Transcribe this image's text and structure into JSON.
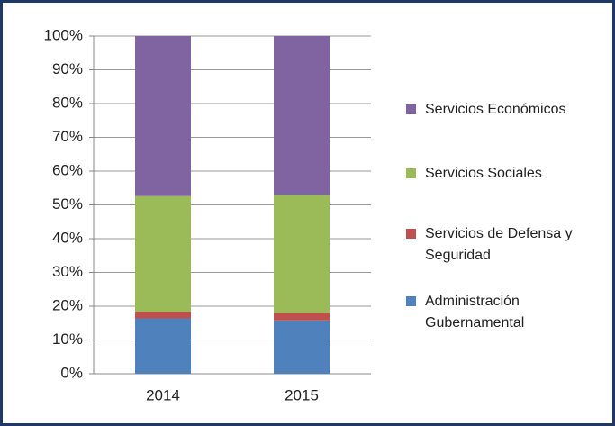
{
  "chart_data": {
    "type": "stacked-bar",
    "categories": [
      "2014",
      "2015"
    ],
    "series": [
      {
        "name": "Administración Gubernamental",
        "color": "#4f81bd",
        "values": [
          16.4,
          15.8
        ]
      },
      {
        "name": "Servicios de Defensa y Seguridad",
        "color": "#c0504d",
        "values": [
          2,
          2.2
        ]
      },
      {
        "name": "Servicios Sociales",
        "color": "#9bbb59",
        "values": [
          34.2,
          35
        ]
      },
      {
        "name": "Servicios Económicos",
        "color": "#8064a2",
        "values": [
          47.4,
          47
        ]
      }
    ],
    "ylim": [
      0,
      100
    ],
    "yticks": [
      {
        "value": 0,
        "label": "0%"
      },
      {
        "value": 10,
        "label": "10%"
      },
      {
        "value": 20,
        "label": "20%"
      },
      {
        "value": 30,
        "label": "30%"
      },
      {
        "value": 40,
        "label": "40%"
      },
      {
        "value": 50,
        "label": "50%"
      },
      {
        "value": 60,
        "label": "60%"
      },
      {
        "value": 70,
        "label": "70%"
      },
      {
        "value": 80,
        "label": "80%"
      },
      {
        "value": 90,
        "label": "90%"
      },
      {
        "value": 100,
        "label": "100%"
      }
    ],
    "grid": true,
    "legend": "right"
  }
}
